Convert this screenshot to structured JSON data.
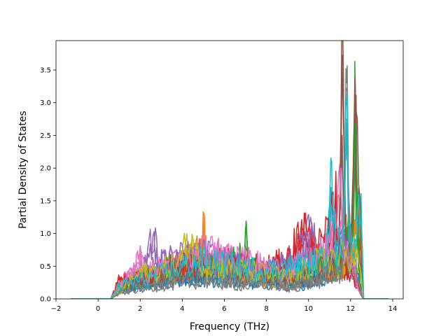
{
  "chart_data": {
    "type": "line",
    "title": "",
    "xlabel": "Frequency (THz)",
    "ylabel": "Partial Density of States",
    "xlim": [
      -2,
      14.5
    ],
    "ylim": [
      0,
      3.95
    ],
    "xticks": [
      -2,
      0,
      2,
      4,
      6,
      8,
      10,
      12,
      14
    ],
    "yticks": [
      0.0,
      0.5,
      1.0,
      1.5,
      2.0,
      2.5,
      3.0,
      3.5
    ],
    "xtick_labels": [
      "−2",
      "0",
      "2",
      "4",
      "6",
      "8",
      "10",
      "12",
      "14"
    ],
    "ytick_labels": [
      "0.0",
      "0.5",
      "1.0",
      "1.5",
      "2.0",
      "2.5",
      "3.0",
      "3.5"
    ],
    "grid": false,
    "legend": "none",
    "palette": [
      "#1f77b4",
      "#ff7f0e",
      "#2ca02c",
      "#d62728",
      "#9467bd",
      "#8c564b",
      "#e377c2",
      "#7f7f7f",
      "#bcbd22",
      "#17becf"
    ],
    "x_range_of_data": [
      -1.3,
      13.8
    ],
    "series": [
      {
        "color": "#1f77b4",
        "x": [
          -1.3,
          0.6,
          1.0,
          2.0,
          3.0,
          4.0,
          5.0,
          6.0,
          7.0,
          8.0,
          9.0,
          10.0,
          10.8,
          11.2,
          11.6,
          12.0,
          12.4,
          12.6,
          13.8
        ],
        "y": [
          0,
          0,
          0.15,
          0.25,
          0.3,
          0.35,
          0.38,
          0.4,
          0.3,
          0.32,
          0.25,
          0.3,
          0.4,
          0.6,
          1.1,
          0.5,
          0.3,
          0,
          0
        ]
      },
      {
        "color": "#ff7f0e",
        "x": [
          -1.3,
          0.6,
          1.0,
          2.0,
          3.0,
          4.0,
          4.9,
          5.0,
          5.2,
          6.0,
          7.0,
          8.0,
          9.0,
          10.0,
          11.0,
          11.8,
          12.5,
          12.6,
          13.8
        ],
        "y": [
          0,
          0,
          0.2,
          0.35,
          0.45,
          0.55,
          0.75,
          1.24,
          0.6,
          0.55,
          0.45,
          0.4,
          0.35,
          0.45,
          0.5,
          0.6,
          1.28,
          0,
          0
        ]
      },
      {
        "color": "#2ca02c",
        "x": [
          -1.3,
          0.6,
          1.0,
          2.0,
          3.0,
          4.0,
          5.0,
          6.0,
          6.9,
          7.0,
          7.2,
          8.0,
          9.0,
          10.0,
          11.0,
          11.5,
          11.8,
          12.1,
          12.2,
          12.4,
          12.6,
          13.8
        ],
        "y": [
          0,
          0,
          0.18,
          0.3,
          0.35,
          0.45,
          0.5,
          0.55,
          0.65,
          1.03,
          0.5,
          0.4,
          0.35,
          0.4,
          0.55,
          0.6,
          0.9,
          1.2,
          2.85,
          0.4,
          0,
          0
        ]
      },
      {
        "color": "#d62728",
        "x": [
          -1.3,
          0.6,
          1.0,
          2.0,
          3.0,
          4.0,
          5.0,
          6.0,
          7.0,
          8.0,
          9.0,
          9.8,
          10.0,
          10.5,
          11.0,
          11.3,
          11.5,
          12.0,
          12.6,
          13.8
        ],
        "y": [
          0,
          0,
          0.3,
          0.35,
          0.4,
          0.5,
          0.55,
          0.6,
          0.55,
          0.5,
          0.6,
          1.15,
          0.9,
          0.8,
          1.0,
          1.56,
          0.7,
          0.5,
          0,
          0
        ]
      },
      {
        "color": "#9467bd",
        "x": [
          -1.3,
          0.6,
          1.0,
          2.0,
          2.6,
          3.0,
          4.0,
          5.0,
          6.0,
          7.0,
          8.0,
          9.0,
          9.8,
          10.0,
          10.4,
          11.0,
          11.5,
          12.0,
          12.6,
          13.8
        ],
        "y": [
          0,
          0,
          0.25,
          0.4,
          0.91,
          0.6,
          0.65,
          0.7,
          0.6,
          0.5,
          0.45,
          0.55,
          0.9,
          1.29,
          0.7,
          0.6,
          0.8,
          0.6,
          0,
          0
        ]
      },
      {
        "color": "#8c564b",
        "x": [
          -1.3,
          0.6,
          1.0,
          2.0,
          3.0,
          4.0,
          5.0,
          6.0,
          7.0,
          8.0,
          9.0,
          10.0,
          11.0,
          11.4,
          11.6,
          11.8,
          12.0,
          12.2,
          12.6,
          13.8
        ],
        "y": [
          0,
          0,
          0.2,
          0.3,
          0.45,
          0.6,
          0.55,
          0.5,
          0.45,
          0.4,
          0.35,
          0.4,
          0.5,
          0.6,
          3.73,
          0.7,
          0.8,
          3.02,
          0,
          0
        ]
      },
      {
        "color": "#e377c2",
        "x": [
          -1.3,
          0.6,
          1.0,
          1.9,
          2.0,
          2.2,
          3.0,
          4.0,
          5.0,
          6.0,
          7.0,
          8.0,
          9.0,
          10.0,
          11.0,
          11.5,
          11.7,
          12.0,
          12.6,
          13.8
        ],
        "y": [
          0,
          0,
          0.2,
          0.6,
          0.7,
          0.4,
          0.5,
          0.6,
          0.75,
          0.7,
          0.6,
          0.5,
          0.45,
          0.6,
          0.8,
          1.73,
          0.7,
          0.6,
          0,
          0
        ]
      },
      {
        "color": "#7f7f7f",
        "x": [
          -1.3,
          0.6,
          1.0,
          2.0,
          3.0,
          4.0,
          5.0,
          6.0,
          7.0,
          8.0,
          9.0,
          10.0,
          11.0,
          11.6,
          11.8,
          12.0,
          12.2,
          12.6,
          13.8
        ],
        "y": [
          0,
          0,
          0.1,
          0.2,
          0.25,
          0.3,
          0.35,
          0.3,
          0.25,
          0.3,
          0.2,
          0.3,
          0.4,
          0.5,
          3.3,
          0.6,
          0.5,
          0,
          0
        ]
      },
      {
        "color": "#bcbd22",
        "x": [
          -1.3,
          0.6,
          1.0,
          2.0,
          3.0,
          4.0,
          4.2,
          5.0,
          6.0,
          7.0,
          8.0,
          9.0,
          10.0,
          10.5,
          11.0,
          12.0,
          12.4,
          12.6,
          13.8
        ],
        "y": [
          0,
          0,
          0.15,
          0.4,
          0.45,
          0.6,
          0.92,
          0.55,
          0.5,
          0.45,
          0.4,
          0.35,
          0.5,
          0.6,
          0.65,
          0.7,
          0.6,
          0,
          0
        ]
      },
      {
        "color": "#17becf",
        "x": [
          -1.3,
          0.6,
          1.0,
          2.0,
          3.0,
          4.0,
          5.0,
          6.0,
          7.0,
          8.0,
          9.0,
          10.0,
          10.8,
          11.1,
          11.3,
          11.6,
          11.8,
          12.0,
          12.5,
          12.6,
          13.8
        ],
        "y": [
          0,
          0,
          0.2,
          0.3,
          0.4,
          0.5,
          0.6,
          0.55,
          0.5,
          0.45,
          0.5,
          0.55,
          0.6,
          2.09,
          0.6,
          1.0,
          2.75,
          0.8,
          1.61,
          0,
          0
        ]
      }
    ]
  }
}
